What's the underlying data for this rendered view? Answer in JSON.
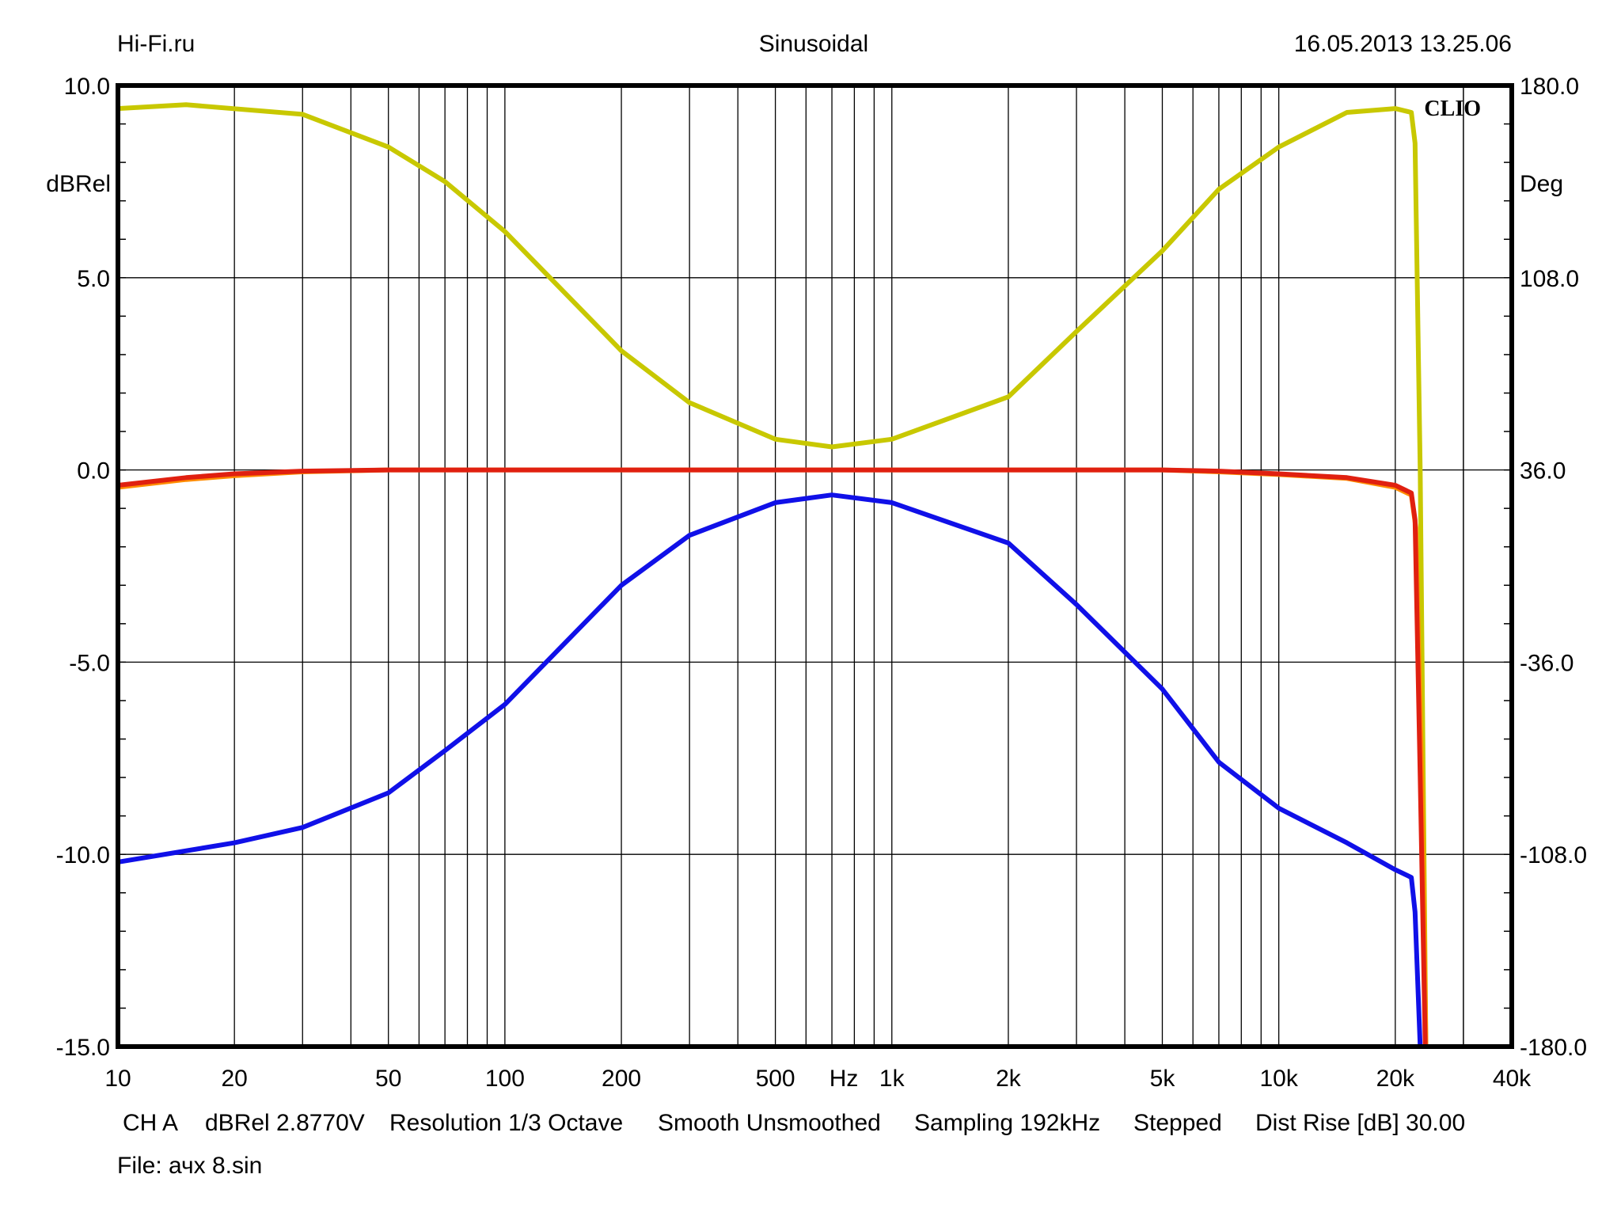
{
  "header": {
    "left": "Hi-Fi.ru",
    "center": "Sinusoidal",
    "right": "16.05.2013 13.25.06"
  },
  "logo": "CLIO",
  "footer": {
    "items": [
      "CH A",
      "dBRel 2.8770V",
      "Resolution 1/3 Octave",
      "Smooth Unsmoothed",
      "Sampling 192kHz",
      "Stepped",
      "Dist Rise [dB] 30.00"
    ],
    "file": "File: ачх 8.sin"
  },
  "chart_data": {
    "type": "line",
    "xscale": "log",
    "xlim": [
      10,
      40000
    ],
    "ylim": [
      -15,
      10
    ],
    "ylim_right": [
      -180,
      180
    ],
    "ylabel": "dBRel",
    "ylabel_right": "Deg",
    "xunit_label": "Hz",
    "grid": true,
    "x_ticks": [
      {
        "v": 10,
        "label": "10"
      },
      {
        "v": 20,
        "label": "20"
      },
      {
        "v": 50,
        "label": "50"
      },
      {
        "v": 100,
        "label": "100"
      },
      {
        "v": 200,
        "label": "200"
      },
      {
        "v": 500,
        "label": "500"
      },
      {
        "v": 1000,
        "label": "1k"
      },
      {
        "v": 2000,
        "label": "2k"
      },
      {
        "v": 5000,
        "label": "5k"
      },
      {
        "v": 10000,
        "label": "10k"
      },
      {
        "v": 20000,
        "label": "20k"
      },
      {
        "v": 40000,
        "label": "40k"
      }
    ],
    "y_ticks": [
      {
        "v": 10,
        "label": "10.0"
      },
      {
        "v": 5,
        "label": "5.0"
      },
      {
        "v": 0,
        "label": "0.0"
      },
      {
        "v": -5,
        "label": "-5.0"
      },
      {
        "v": -10,
        "label": "-10.0"
      },
      {
        "v": -15,
        "label": "-15.0"
      }
    ],
    "y_ticks_right": [
      {
        "v": 180,
        "label": "180.0"
      },
      {
        "v": 108,
        "label": "108.0"
      },
      {
        "v": 36,
        "label": "36.0"
      },
      {
        "v": -36,
        "label": "-36.0"
      },
      {
        "v": -108,
        "label": "-108.0"
      },
      {
        "v": -180,
        "label": "-180.0"
      }
    ],
    "series": [
      {
        "color": "#c8c800",
        "x": [
          10,
          15,
          30,
          50,
          70,
          100,
          200,
          300,
          500,
          700,
          1000,
          2000,
          3000,
          5000,
          7000,
          10000,
          15000,
          20000,
          22000,
          22500,
          23200,
          24000
        ],
        "y": [
          9.4,
          9.5,
          9.25,
          8.4,
          7.5,
          6.2,
          3.1,
          1.75,
          0.8,
          0.6,
          0.8,
          1.9,
          3.6,
          5.7,
          7.3,
          8.4,
          9.3,
          9.4,
          9.3,
          8.5,
          0,
          -15
        ]
      },
      {
        "color": "#1010e8",
        "x": [
          10,
          20,
          30,
          50,
          70,
          100,
          200,
          300,
          500,
          700,
          1000,
          2000,
          3000,
          5000,
          7000,
          10000,
          15000,
          20000,
          22000,
          22500,
          23200
        ],
        "y": [
          -10.2,
          -9.7,
          -9.3,
          -8.4,
          -7.3,
          -6.1,
          -3.0,
          -1.7,
          -0.85,
          -0.65,
          -0.85,
          -1.9,
          -3.5,
          -5.7,
          -7.6,
          -8.8,
          -9.7,
          -10.4,
          -10.6,
          -11.5,
          -15
        ]
      },
      {
        "color": "#ff8c00",
        "x": [
          10,
          15,
          20,
          30,
          50,
          5000,
          7000,
          10000,
          15000,
          20000,
          22000,
          22600,
          23400,
          24000
        ],
        "y": [
          -0.45,
          -0.25,
          -0.15,
          -0.05,
          0,
          0,
          -0.05,
          -0.12,
          -0.22,
          -0.45,
          -0.65,
          -1.5,
          -8,
          -15
        ]
      },
      {
        "color": "#e02010",
        "x": [
          10,
          15,
          20,
          30,
          50,
          5000,
          7000,
          10000,
          15000,
          20000,
          22000,
          22500,
          23200,
          23900
        ],
        "y": [
          -0.4,
          -0.2,
          -0.1,
          -0.03,
          0,
          0,
          -0.03,
          -0.1,
          -0.2,
          -0.4,
          -0.6,
          -1.3,
          -8,
          -15
        ]
      }
    ]
  }
}
